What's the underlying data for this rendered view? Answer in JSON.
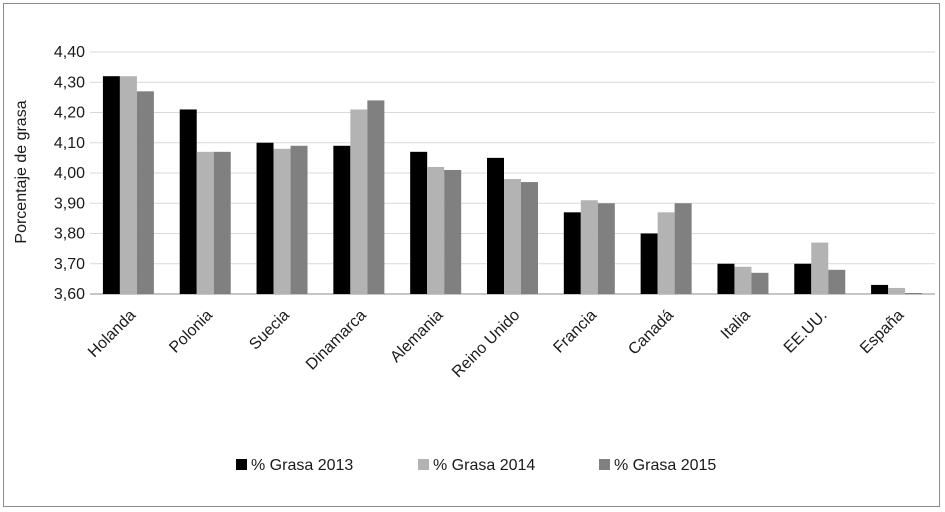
{
  "chart_data": {
    "type": "bar",
    "title": "",
    "xlabel": "",
    "ylabel": "Porcentaje de grasa",
    "ylim": [
      3.6,
      4.4
    ],
    "yticks": [
      "3,60",
      "3,70",
      "3,80",
      "3,90",
      "4,00",
      "4,10",
      "4,20",
      "4,30",
      "4,40"
    ],
    "grid": true,
    "legend_position": "bottom",
    "categories": [
      "Holanda",
      "Polonia",
      "Suecia",
      "Dinamarca",
      "Alemania",
      "Reino Unido",
      "Francia",
      "Canadá",
      "Italia",
      "EE.UU.",
      "España"
    ],
    "series": [
      {
        "name": "% Grasa 2013",
        "color": "#000000",
        "values": [
          4.32,
          4.21,
          4.1,
          4.09,
          4.07,
          4.05,
          3.87,
          3.8,
          3.7,
          3.7,
          3.63
        ]
      },
      {
        "name": "% Grasa 2014",
        "color": "#b3b3b3",
        "values": [
          4.32,
          4.07,
          4.08,
          4.21,
          4.02,
          3.98,
          3.91,
          3.87,
          3.69,
          3.77,
          3.62
        ]
      },
      {
        "name": "% Grasa 2015",
        "color": "#808080",
        "values": [
          4.27,
          4.07,
          4.09,
          4.24,
          4.01,
          3.97,
          3.9,
          3.9,
          3.67,
          3.68,
          3.6
        ]
      }
    ]
  }
}
